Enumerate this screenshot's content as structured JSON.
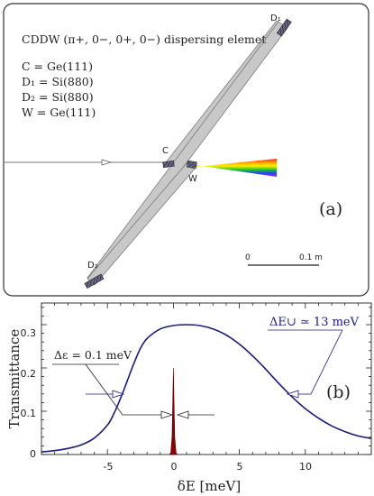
{
  "panel_a": {
    "title": "CDDW (π+, 0−, 0+, 0−) dispersing elemet",
    "legend": [
      "C = Ge(111)",
      "D₁ = Si(880)",
      "D₂ = Si(880)",
      "W = Ge(111)"
    ],
    "labels": {
      "c": "C",
      "w": "W",
      "d1": "D₁",
      "d2": "D₂"
    },
    "panel_label": "(a)",
    "scale_bar": {
      "start": "0",
      "end": "0.1 m"
    },
    "colors": {
      "beam": "#c8c8c8",
      "crystal": "#4a4a60",
      "frame": "#333333"
    }
  },
  "panel_b": {
    "panel_label": "(b)",
    "ylabel": "Transmittance",
    "xlabel": "δE [meV]",
    "annotation_broad": "ΔE∪ ≃ 13 meV",
    "annotation_narrow": "Δε = 0.1 meV",
    "colors": {
      "broad_curve": "#1a1a80",
      "narrow_peak": "#8b0000"
    }
  },
  "chart_data": {
    "type": "line",
    "xlim": [
      -10,
      15
    ],
    "ylim": [
      0,
      0.35
    ],
    "xticks": [
      "-5",
      "0",
      "5",
      "10"
    ],
    "yticks": [
      "0",
      "0.1",
      "0.2",
      "0.3"
    ],
    "series": [
      {
        "x": [
          -10,
          -9,
          -8,
          -7,
          -6,
          -5,
          -4.5,
          -4,
          -3.5,
          -3,
          -2.5,
          -2,
          -1,
          0,
          1,
          2,
          3,
          4,
          5,
          6,
          7,
          8,
          9,
          10,
          11,
          12,
          13,
          14,
          15
        ],
        "y": [
          0.006,
          0.009,
          0.014,
          0.022,
          0.038,
          0.068,
          0.095,
          0.13,
          0.17,
          0.21,
          0.245,
          0.268,
          0.29,
          0.298,
          0.3,
          0.298,
          0.29,
          0.276,
          0.255,
          0.228,
          0.197,
          0.164,
          0.133,
          0.106,
          0.084,
          0.066,
          0.053,
          0.043,
          0.037
        ]
      },
      {
        "x": [
          -0.3,
          -0.2,
          -0.1,
          -0.05,
          0,
          0.05,
          0.1,
          0.2,
          0.3
        ],
        "y": [
          0,
          0.004,
          0.04,
          0.12,
          0.2,
          0.12,
          0.04,
          0.004,
          0
        ]
      }
    ]
  }
}
